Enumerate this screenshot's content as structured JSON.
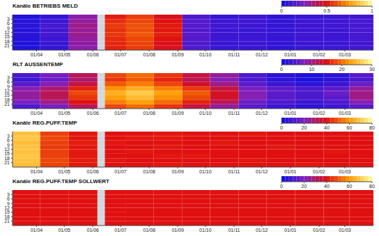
{
  "chart_data": [
    {
      "type": "heatmap",
      "title": "Kanäle BETRIEBS MELD",
      "x_edges": [
        -26,
        4,
        35,
        66,
        74,
        97,
        127,
        158,
        188,
        219,
        249,
        280,
        311,
        339,
        365
      ],
      "y_edges": [
        0,
        3,
        6,
        9,
        12,
        15,
        18,
        21,
        24
      ],
      "xlim": [
        -26,
        365
      ],
      "ylim": [
        0,
        24
      ],
      "xticks": [
        {
          "value": 0,
          "label": "01/04"
        },
        {
          "value": 30,
          "label": "01/05"
        },
        {
          "value": 61,
          "label": "01/06"
        },
        {
          "value": 91,
          "label": "01/07"
        },
        {
          "value": 122,
          "label": "01/08"
        },
        {
          "value": 153,
          "label": "01/09"
        },
        {
          "value": 183,
          "label": "01/10"
        },
        {
          "value": 214,
          "label": "01/11"
        },
        {
          "value": 244,
          "label": "01/12"
        },
        {
          "value": 275,
          "label": "01/01"
        },
        {
          "value": 306,
          "label": "01/02"
        },
        {
          "value": 334,
          "label": "01/03"
        }
      ],
      "yticks": [
        3,
        6,
        9,
        12,
        15,
        18,
        21
      ],
      "cells": [
        [
          0.04,
          0.08,
          0.28,
          null,
          0.52,
          0.58,
          0.48,
          0.14,
          0.09,
          0.1,
          0.07,
          0.09,
          0.1,
          0.11
        ],
        [
          0.05,
          0.1,
          0.3,
          null,
          0.55,
          0.6,
          0.5,
          0.15,
          0.1,
          0.1,
          0.08,
          0.1,
          0.1,
          0.12
        ],
        [
          0.06,
          0.12,
          0.33,
          null,
          0.58,
          0.62,
          0.52,
          0.16,
          0.11,
          0.1,
          0.08,
          0.1,
          0.11,
          0.12
        ],
        [
          0.05,
          0.11,
          0.31,
          null,
          0.56,
          0.61,
          0.51,
          0.15,
          0.1,
          0.09,
          0.08,
          0.1,
          0.1,
          0.12
        ],
        [
          0.06,
          0.12,
          0.32,
          null,
          0.57,
          0.63,
          0.53,
          0.16,
          0.1,
          0.1,
          0.09,
          0.11,
          0.1,
          0.12
        ],
        [
          0.05,
          0.1,
          0.3,
          null,
          0.55,
          0.6,
          0.5,
          0.15,
          0.1,
          0.1,
          0.08,
          0.1,
          0.1,
          0.12
        ],
        [
          0.04,
          0.09,
          0.29,
          null,
          0.54,
          0.59,
          0.49,
          0.14,
          0.09,
          0.1,
          0.08,
          0.1,
          0.09,
          0.11
        ],
        [
          0.04,
          0.08,
          0.28,
          null,
          0.53,
          0.58,
          0.48,
          0.14,
          0.09,
          0.09,
          0.07,
          0.09,
          0.1,
          0.11
        ]
      ],
      "colorbar": {
        "range": [
          0,
          1
        ],
        "ticks": [
          0,
          0.5,
          1
        ]
      }
    },
    {
      "type": "heatmap",
      "title": "RLT AUSSENTEMP",
      "x_edges": [
        -26,
        4,
        35,
        66,
        74,
        97,
        127,
        158,
        188,
        219,
        249,
        280,
        311,
        339,
        365
      ],
      "y_edges": [
        0,
        3,
        6,
        9,
        12,
        15,
        18,
        21,
        24
      ],
      "xlim": [
        -26,
        365
      ],
      "ylim": [
        0,
        24
      ],
      "xticks": [
        {
          "value": 0,
          "label": "01/04"
        },
        {
          "value": 30,
          "label": "01/05"
        },
        {
          "value": 61,
          "label": "01/06"
        },
        {
          "value": 91,
          "label": "01/07"
        },
        {
          "value": 122,
          "label": "01/08"
        },
        {
          "value": 153,
          "label": "01/09"
        },
        {
          "value": 183,
          "label": "01/10"
        },
        {
          "value": 214,
          "label": "01/11"
        },
        {
          "value": 244,
          "label": "01/12"
        },
        {
          "value": 275,
          "label": "01/01"
        },
        {
          "value": 306,
          "label": "01/02"
        },
        {
          "value": 334,
          "label": "01/03"
        }
      ],
      "yticks": [
        3,
        6,
        9,
        12,
        15,
        18,
        21
      ],
      "cells": [
        [
          4,
          7,
          12,
          null,
          18,
          20,
          17,
          13,
          9,
          4,
          2,
          1,
          2,
          5
        ],
        [
          3,
          6,
          11,
          null,
          17,
          19,
          16,
          12,
          8,
          4,
          2,
          1,
          2,
          4
        ],
        [
          5,
          8,
          13,
          null,
          19,
          21,
          18,
          14,
          10,
          5,
          3,
          2,
          3,
          6
        ],
        [
          8,
          11,
          16,
          null,
          22,
          24,
          21,
          17,
          13,
          7,
          5,
          4,
          5,
          9
        ],
        [
          9,
          12,
          18,
          null,
          24,
          26,
          23,
          19,
          14,
          8,
          5,
          4,
          6,
          10
        ],
        [
          9,
          12,
          17,
          null,
          23,
          25,
          22,
          18,
          14,
          8,
          5,
          4,
          5,
          10
        ],
        [
          7,
          10,
          15,
          null,
          21,
          23,
          20,
          16,
          12,
          6,
          4,
          3,
          4,
          8
        ],
        [
          4,
          7,
          12,
          null,
          18,
          20,
          17,
          13,
          9,
          5,
          3,
          2,
          3,
          5
        ]
      ],
      "colorbar": {
        "range": [
          0,
          30
        ],
        "ticks": [
          0,
          10,
          20,
          30
        ]
      }
    },
    {
      "type": "heatmap",
      "title": "Kanäle REG.PUFF.TEMP",
      "x_edges": [
        -26,
        4,
        35,
        66,
        74,
        97,
        127,
        158,
        188,
        219,
        249,
        280,
        311,
        339,
        365
      ],
      "y_edges": [
        0,
        3,
        6,
        9,
        12,
        15,
        18,
        21,
        24
      ],
      "xlim": [
        -26,
        365
      ],
      "ylim": [
        0,
        24
      ],
      "xticks": [
        {
          "value": 0,
          "label": "01/04"
        },
        {
          "value": 30,
          "label": "01/05"
        },
        {
          "value": 61,
          "label": "01/06"
        },
        {
          "value": 91,
          "label": "01/07"
        },
        {
          "value": 122,
          "label": "01/08"
        },
        {
          "value": 153,
          "label": "01/09"
        },
        {
          "value": 183,
          "label": "01/10"
        },
        {
          "value": 214,
          "label": "01/11"
        },
        {
          "value": 244,
          "label": "01/12"
        },
        {
          "value": 275,
          "label": "01/01"
        },
        {
          "value": 306,
          "label": "01/02"
        },
        {
          "value": 334,
          "label": "01/03"
        }
      ],
      "yticks": [
        3,
        6,
        9,
        12,
        15,
        18,
        21
      ],
      "cells": [
        [
          68,
          47,
          41,
          null,
          40,
          40,
          41,
          40,
          40,
          41,
          40,
          40,
          40,
          40
        ],
        [
          69,
          48,
          41,
          null,
          40,
          41,
          41,
          40,
          40,
          40,
          40,
          40,
          40,
          40
        ],
        [
          67,
          47,
          42,
          null,
          41,
          40,
          40,
          40,
          41,
          40,
          40,
          40,
          40,
          40
        ],
        [
          68,
          46,
          41,
          null,
          40,
          40,
          41,
          40,
          40,
          40,
          41,
          40,
          40,
          40
        ],
        [
          68,
          47,
          41,
          null,
          40,
          41,
          40,
          40,
          40,
          40,
          40,
          40,
          41,
          40
        ],
        [
          69,
          47,
          41,
          null,
          40,
          40,
          41,
          41,
          40,
          40,
          40,
          40,
          40,
          40
        ],
        [
          68,
          48,
          42,
          null,
          41,
          40,
          40,
          40,
          40,
          41,
          40,
          40,
          40,
          40
        ],
        [
          67,
          47,
          41,
          null,
          40,
          40,
          41,
          40,
          40,
          40,
          40,
          41,
          40,
          40
        ]
      ],
      "colorbar": {
        "range": [
          0,
          80
        ],
        "ticks": [
          0,
          20,
          40,
          60,
          80
        ]
      }
    },
    {
      "type": "heatmap",
      "title": "Kanäle REG.PUFF.TEMP SOLLWERT",
      "x_edges": [
        -26,
        4,
        35,
        66,
        74,
        97,
        127,
        158,
        188,
        219,
        249,
        280,
        311,
        339,
        365
      ],
      "y_edges": [
        0,
        3,
        6,
        9,
        12,
        15,
        18,
        21,
        24
      ],
      "xlim": [
        -26,
        365
      ],
      "ylim": [
        0,
        24
      ],
      "xticks": [
        {
          "value": 0,
          "label": "01/04"
        },
        {
          "value": 30,
          "label": "01/05"
        },
        {
          "value": 61,
          "label": "01/06"
        },
        {
          "value": 91,
          "label": "01/07"
        },
        {
          "value": 122,
          "label": "01/08"
        },
        {
          "value": 153,
          "label": "01/09"
        },
        {
          "value": 183,
          "label": "01/10"
        },
        {
          "value": 214,
          "label": "01/11"
        },
        {
          "value": 244,
          "label": "01/12"
        },
        {
          "value": 275,
          "label": "01/01"
        },
        {
          "value": 306,
          "label": "01/02"
        },
        {
          "value": 334,
          "label": "01/03"
        }
      ],
      "yticks": [
        3,
        6,
        9,
        12,
        15,
        18,
        21
      ],
      "cells": [
        [
          40,
          40,
          40,
          null,
          40,
          40,
          40,
          40,
          40,
          40,
          40,
          40,
          40,
          40
        ],
        [
          40,
          40,
          40,
          null,
          40,
          40,
          40,
          40,
          40,
          40,
          40,
          40,
          40,
          40
        ],
        [
          40,
          40,
          40,
          null,
          40,
          40,
          40,
          40,
          40,
          40,
          40,
          40,
          40,
          40
        ],
        [
          40,
          40,
          40,
          null,
          40,
          40,
          40,
          40,
          40,
          40,
          40,
          40,
          40,
          40
        ],
        [
          40,
          40,
          40,
          null,
          40,
          40,
          40,
          40,
          40,
          40,
          40,
          40,
          40,
          40
        ],
        [
          40,
          40,
          40,
          null,
          40,
          40,
          40,
          40,
          40,
          40,
          40,
          40,
          40,
          40
        ],
        [
          40,
          40,
          40,
          null,
          40,
          40,
          40,
          40,
          40,
          40,
          40,
          40,
          40,
          40
        ],
        [
          40,
          40,
          40,
          null,
          40,
          40,
          40,
          40,
          40,
          40,
          40,
          40,
          40,
          40
        ]
      ],
      "colorbar": {
        "range": [
          0,
          80
        ],
        "ticks": [
          0,
          20,
          40,
          60,
          80
        ]
      }
    }
  ]
}
